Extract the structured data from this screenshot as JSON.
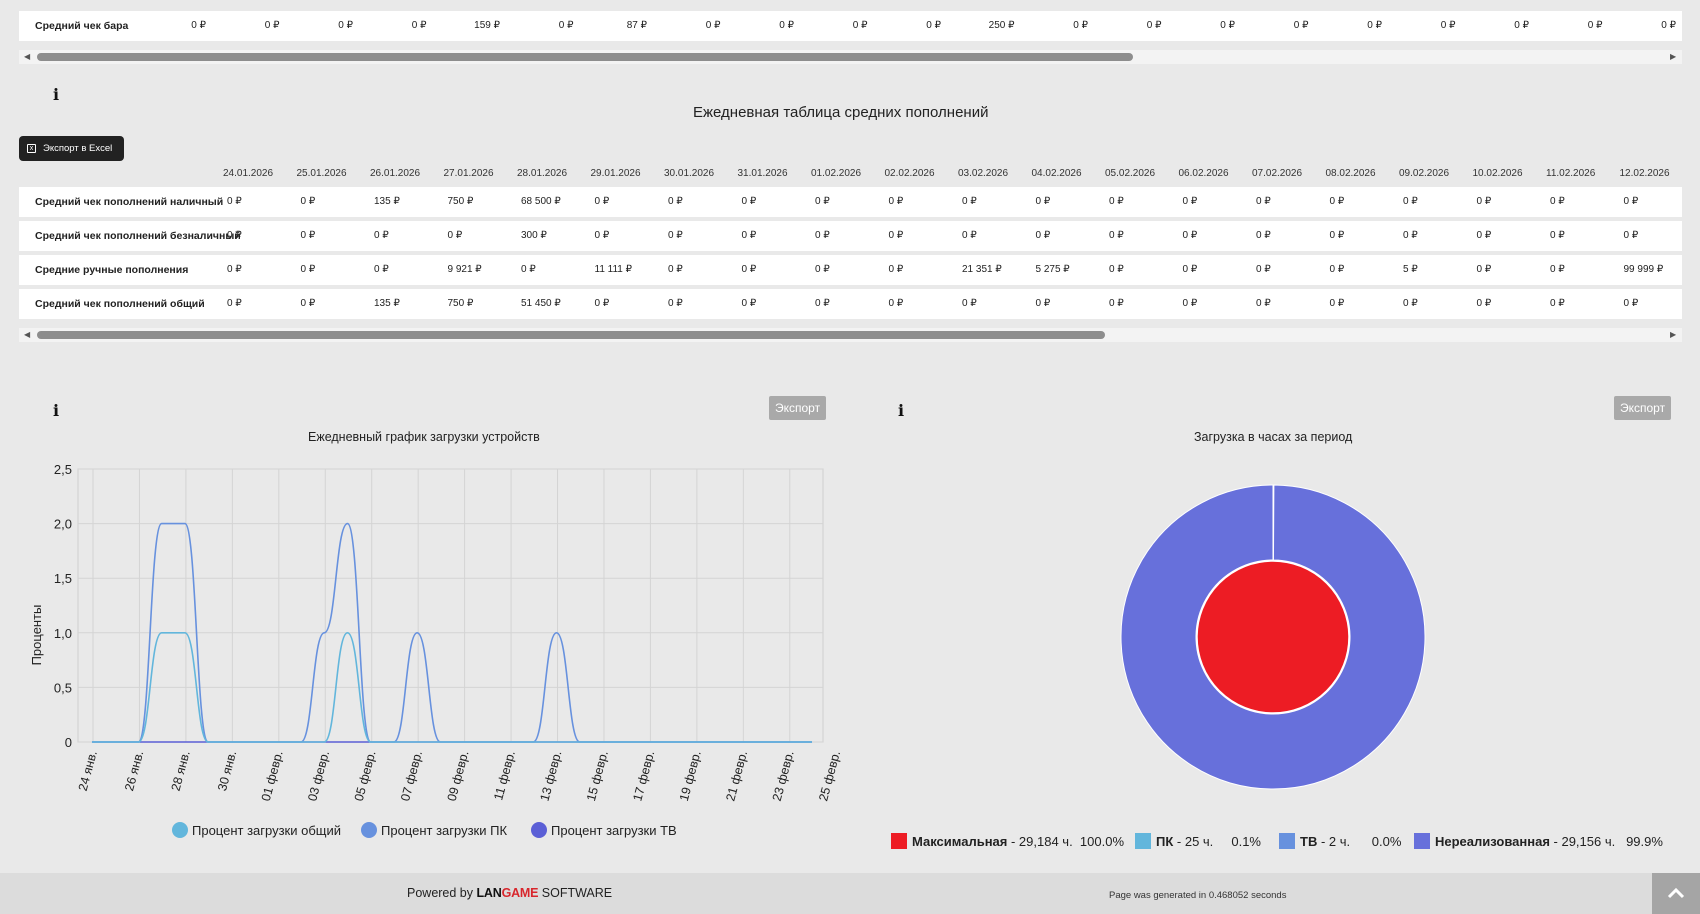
{
  "bar_table": {
    "row_label": "Средний чек бара",
    "values": [
      "0 ₽",
      "0 ₽",
      "0 ₽",
      "0 ₽",
      "159 ₽",
      "0 ₽",
      "87 ₽",
      "0 ₽",
      "0 ₽",
      "0 ₽",
      "0 ₽",
      "250 ₽",
      "0 ₽",
      "0 ₽",
      "0 ₽",
      "0 ₽",
      "0 ₽",
      "0 ₽",
      "0 ₽",
      "0 ₽",
      "0 ₽"
    ]
  },
  "topup_section": {
    "title": "Ежедневная таблица средних пополнений",
    "excel_button": "Экспорт в Excel",
    "dates": [
      "24.01.2026",
      "25.01.2026",
      "26.01.2026",
      "27.01.2026",
      "28.01.2026",
      "29.01.2026",
      "30.01.2026",
      "31.01.2026",
      "01.02.2026",
      "02.02.2026",
      "03.02.2026",
      "04.02.2026",
      "05.02.2026",
      "06.02.2026",
      "07.02.2026",
      "08.02.2026",
      "09.02.2026",
      "10.02.2026",
      "11.02.2026",
      "12.02.2026"
    ],
    "rows": [
      {
        "label": "Средний чек пополнений наличный",
        "values": [
          "0 ₽",
          "0 ₽",
          "135 ₽",
          "750 ₽",
          "68 500 ₽",
          "0 ₽",
          "0 ₽",
          "0 ₽",
          "0 ₽",
          "0 ₽",
          "0 ₽",
          "0 ₽",
          "0 ₽",
          "0 ₽",
          "0 ₽",
          "0 ₽",
          "0 ₽",
          "0 ₽",
          "0 ₽",
          "0 ₽"
        ]
      },
      {
        "label": "Средний чек пополнений безналичный",
        "values": [
          "0 ₽",
          "0 ₽",
          "0 ₽",
          "0 ₽",
          "300 ₽",
          "0 ₽",
          "0 ₽",
          "0 ₽",
          "0 ₽",
          "0 ₽",
          "0 ₽",
          "0 ₽",
          "0 ₽",
          "0 ₽",
          "0 ₽",
          "0 ₽",
          "0 ₽",
          "0 ₽",
          "0 ₽",
          "0 ₽"
        ]
      },
      {
        "label": "Средние ручные пополнения",
        "values": [
          "0 ₽",
          "0 ₽",
          "0 ₽",
          "9 921 ₽",
          "0 ₽",
          "11 111 ₽",
          "0 ₽",
          "0 ₽",
          "0 ₽",
          "0 ₽",
          "21 351 ₽",
          "5 275 ₽",
          "0 ₽",
          "0 ₽",
          "0 ₽",
          "0 ₽",
          "5 ₽",
          "0 ₽",
          "0 ₽",
          "99 999 ₽"
        ]
      },
      {
        "label": "Средний чек пополнений общий",
        "values": [
          "0 ₽",
          "0 ₽",
          "135 ₽",
          "750 ₽",
          "51 450 ₽",
          "0 ₽",
          "0 ₽",
          "0 ₽",
          "0 ₽",
          "0 ₽",
          "0 ₽",
          "0 ₽",
          "0 ₽",
          "0 ₽",
          "0 ₽",
          "0 ₽",
          "0 ₽",
          "0 ₽",
          "0 ₽",
          "0 ₽"
        ]
      }
    ]
  },
  "line_section": {
    "export_button": "Экспорт"
  },
  "pie_section": {
    "export_button": "Экспорт"
  },
  "chart_data": [
    {
      "type": "line",
      "title": "Ежедневный график загрузки устройств",
      "xlabel": "",
      "ylabel": "Проценты",
      "ylim": [
        0,
        2.5
      ],
      "yticks": [
        "0",
        "0,5",
        "1,0",
        "1,5",
        "2,0",
        "2,5"
      ],
      "x": [
        "24 янв.",
        "25 янв.",
        "26 янв.",
        "27 янв.",
        "28 янв.",
        "29 янв.",
        "30 янв.",
        "31 янв.",
        "01 февр.",
        "02 февр.",
        "03 февр.",
        "04 февр.",
        "05 февр.",
        "06 февр.",
        "07 февр.",
        "08 февр.",
        "09 февр.",
        "10 февр.",
        "11 февр.",
        "12 февр.",
        "13 февр.",
        "14 февр.",
        "15 февр.",
        "16 февр.",
        "17 февр.",
        "18 февр.",
        "19 февр.",
        "20 февр.",
        "21 февр.",
        "22 февр.",
        "23 февр.",
        "24 февр."
      ],
      "x_tick_labels": [
        "24 янв.",
        "26 янв.",
        "28 янв.",
        "30 янв.",
        "01 февр.",
        "03 февр.",
        "05 февр.",
        "07 февр.",
        "09 февр.",
        "11 февр.",
        "13 февр.",
        "15 февр.",
        "17 февр.",
        "19 февр.",
        "21 февр.",
        "23 февр.",
        "25 февр."
      ],
      "grid": true,
      "legend_position": "bottom",
      "series": [
        {
          "name": "Процент загрузки общий",
          "color": "#62b6dc",
          "values": [
            0,
            0,
            0,
            1,
            1,
            0,
            0,
            0,
            0,
            0,
            0,
            1,
            0,
            0,
            0,
            0,
            0,
            0,
            0,
            0,
            0,
            0,
            0,
            0,
            0,
            0,
            0,
            0,
            0,
            0,
            0,
            0
          ]
        },
        {
          "name": "Процент загрузки ПК",
          "color": "#6791de",
          "values": [
            0,
            0,
            0,
            2,
            2,
            0,
            0,
            0,
            0,
            0,
            1,
            2,
            0,
            0,
            1,
            0,
            0,
            0,
            0,
            0,
            1,
            0,
            0,
            0,
            0,
            0,
            0,
            0,
            0,
            0,
            0,
            0
          ]
        },
        {
          "name": "Процент загрузки ТВ",
          "color": "#5b5fd6",
          "values": [
            0,
            0,
            0,
            0,
            0,
            0,
            0,
            0,
            0,
            0,
            0,
            0,
            0,
            0,
            0,
            0,
            0,
            0,
            0,
            0,
            0,
            0,
            0,
            0,
            0,
            0,
            0,
            0,
            0,
            0,
            0,
            0
          ]
        }
      ]
    },
    {
      "type": "pie",
      "title": "Загрузка в часах за период",
      "legend_position": "bottom",
      "inner": [
        {
          "name": "Максимальная",
          "value": 29184,
          "percent": 100.0,
          "color": "#ed1c24"
        }
      ],
      "outer": [
        {
          "name": "ПК",
          "value": 25,
          "percent": 0.1,
          "color": "#62b6dc"
        },
        {
          "name": "ТВ",
          "value": 2,
          "percent": 0.0,
          "color": "#6791de"
        },
        {
          "name": "Нереализованная",
          "value": 29156,
          "percent": 99.9,
          "color": "#6770db"
        }
      ],
      "legend": [
        {
          "name": "Максимальная",
          "text": " - 29,184 ч.  100.0%",
          "color": "#ed1c24"
        },
        {
          "name": "ПК",
          "text": " - 25 ч.     0.1%",
          "color": "#62b6dc"
        },
        {
          "name": "ТВ",
          "text": " - 2 ч.      0.0%",
          "color": "#6791de"
        },
        {
          "name": "Нереализованная",
          "text": " - 29,156 ч.   99.9%",
          "color": "#6770db"
        }
      ]
    }
  ],
  "footer": {
    "powered_prefix": "Powered by ",
    "brand_lan": "LAN",
    "brand_game": "GAME",
    "brand_suffix": " SOFTWARE",
    "generated": "Page was generated in 0.468052 seconds"
  }
}
